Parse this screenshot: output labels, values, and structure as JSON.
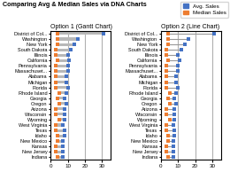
{
  "title": "Comparing Avg & Median Sales via DNA Charts",
  "legend": "upper right",
  "chart_data": [
    {
      "type": "gantt",
      "title": "Option 1 (Gantt Chart)",
      "orientation": "horizontal",
      "categories": [
        "District of Col...",
        "Washington",
        "New York",
        "South Dakota",
        "Illinois",
        "California",
        "Pennsylvania",
        "Massachuset...",
        "Alabama",
        "Michigan",
        "Florida",
        "Rhode Island",
        "Georgia",
        "Oregon",
        "Arizona",
        "Wisconsin",
        "Wyoming",
        "West Virginia",
        "Texas",
        "Idaho",
        "New Mexico",
        "Kansas",
        "New Jersey",
        "Indiana"
      ],
      "series": [
        {
          "name": "Avg. Sales",
          "color": "#4472C4",
          "marker": "square",
          "values": [
            31,
            16,
            14,
            12,
            10,
            11,
            10,
            10,
            9,
            9,
            10,
            9,
            8,
            9,
            8,
            8,
            8,
            7,
            8,
            8,
            7,
            7,
            7,
            7
          ]
        },
        {
          "name": "Median Sales",
          "color": "#ED7D31",
          "marker": "square",
          "values": [
            4,
            4,
            4,
            3,
            3,
            4,
            3,
            3,
            3,
            3,
            3,
            5,
            4,
            5,
            3,
            3,
            5,
            3,
            3,
            4,
            4,
            3,
            3,
            4
          ]
        }
      ],
      "xlim": [
        0,
        35
      ],
      "xticks": [
        0,
        10,
        20,
        30
      ],
      "grid": true
    },
    {
      "type": "dumbbell",
      "title": "Option 2 (Line Chart)",
      "orientation": "horizontal",
      "categories": [
        "District of Col...",
        "Washington",
        "New York",
        "South Dakota",
        "Illinois",
        "California",
        "Pennsylvania",
        "Massachuset...",
        "Alabama",
        "Michigan",
        "Florida",
        "Rhode Island",
        "Georgia",
        "Oregon",
        "Arizona",
        "Wisconsin",
        "Wyoming",
        "West Virginia",
        "Texas",
        "Idaho",
        "New Mexico",
        "Kansas",
        "New Jersey",
        "Indiana"
      ],
      "series": [
        {
          "name": "Avg. Sales",
          "color": "#4472C4",
          "marker": "square",
          "values": [
            31,
            16,
            14,
            12,
            10,
            11,
            10,
            10,
            9,
            9,
            10,
            9,
            8,
            9,
            8,
            8,
            8,
            7,
            8,
            8,
            7,
            7,
            7,
            7
          ]
        },
        {
          "name": "Median Sales",
          "color": "#ED7D31",
          "marker": "square",
          "values": [
            4,
            4,
            4,
            3,
            3,
            4,
            3,
            3,
            3,
            3,
            3,
            5,
            4,
            5,
            3,
            3,
            5,
            3,
            3,
            4,
            4,
            3,
            3,
            4
          ]
        }
      ],
      "xlim": [
        0,
        35
      ],
      "xticks": [
        0,
        10,
        20,
        30
      ],
      "grid": true
    }
  ]
}
